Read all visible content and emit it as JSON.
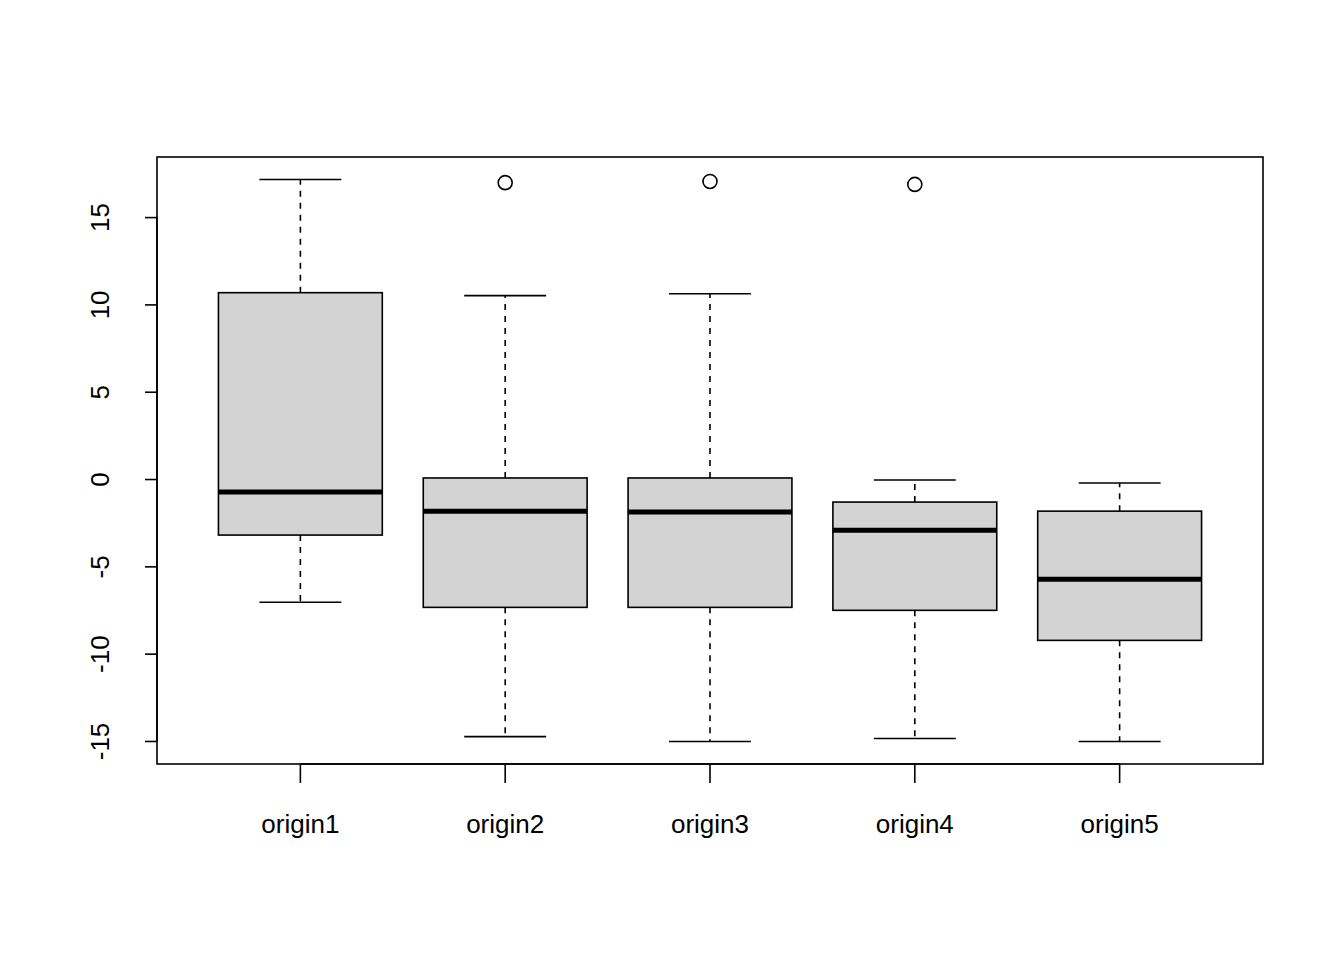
{
  "chart_data": {
    "type": "box",
    "categories": [
      "origin1",
      "origin2",
      "origin3",
      "origin4",
      "origin5"
    ],
    "boxes": [
      {
        "min": -7.03,
        "q1": -3.18,
        "median": -0.72,
        "q3": 10.7,
        "max": 17.18,
        "outliers": []
      },
      {
        "min": -14.72,
        "q1": -7.32,
        "median": -1.81,
        "q3": 0.09,
        "max": 10.53,
        "outliers": [
          17.0
        ]
      },
      {
        "min": -15.0,
        "q1": -7.32,
        "median": -1.86,
        "q3": 0.09,
        "max": 10.64,
        "outliers": [
          17.07
        ]
      },
      {
        "min": -14.83,
        "q1": -7.49,
        "median": -2.9,
        "q3": -1.29,
        "max": -0.03,
        "outliers": [
          16.9
        ]
      },
      {
        "min": -15.0,
        "q1": -9.21,
        "median": -5.71,
        "q3": -1.81,
        "max": -0.2,
        "outliers": []
      }
    ],
    "color": "#d3d3d3",
    "xlim": [
      0.3,
      5.7
    ],
    "ylim": [
      -16.29,
      18.47
    ],
    "yticks": [
      -15,
      -10,
      -5,
      0,
      5,
      10,
      15
    ],
    "grid": false
  }
}
